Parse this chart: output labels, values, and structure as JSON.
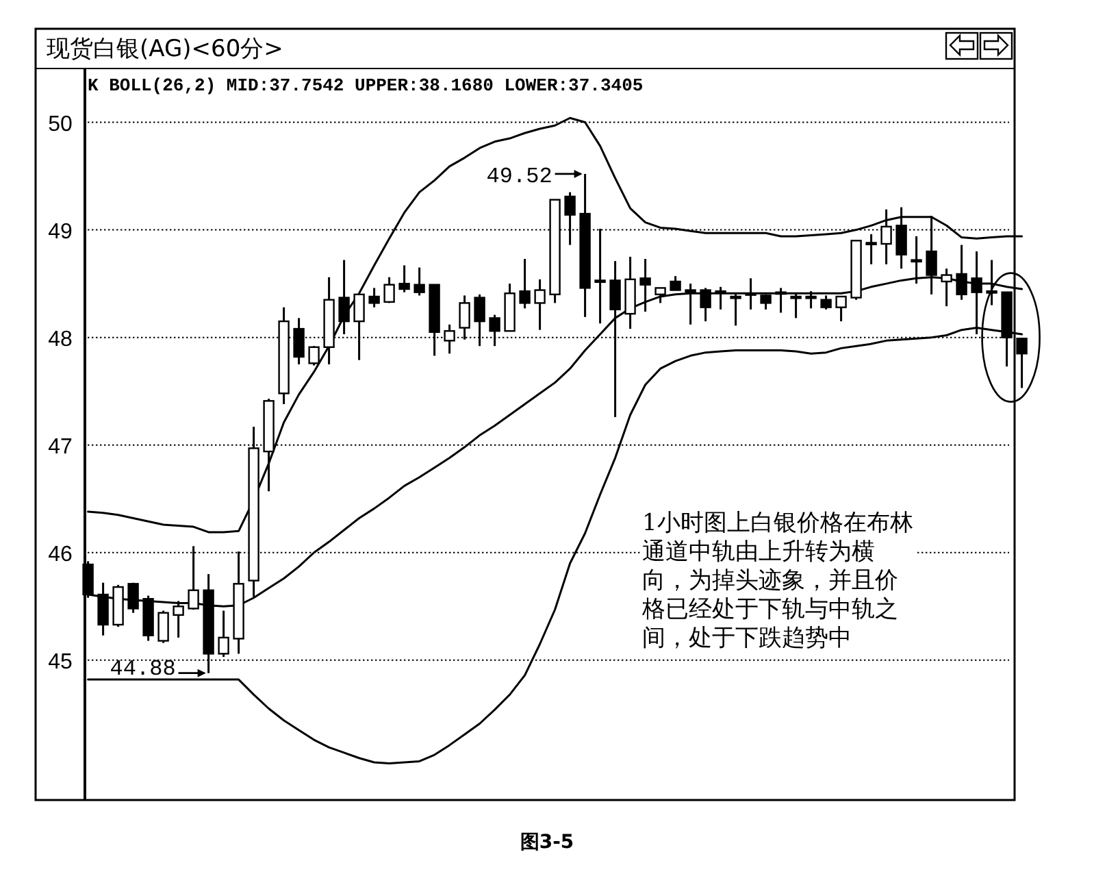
{
  "chart_data": {
    "type": "candlestick",
    "title": "现货白银(AG)<60分>",
    "subtitle": "K BOLL(26,2) MID:37.7542 UPPER:38.1680 LOWER:37.3405",
    "categories": [
      null,
      null,
      null,
      null,
      null,
      null,
      null,
      null,
      null,
      null,
      null,
      null,
      null,
      null,
      null,
      null,
      null,
      null,
      null,
      null,
      null,
      null,
      null,
      null,
      null,
      null,
      null,
      null,
      null,
      null,
      null,
      null,
      null,
      null,
      null,
      null,
      null,
      null,
      null,
      null,
      null,
      null,
      null,
      null,
      null,
      null,
      null,
      null,
      null,
      null,
      null,
      null,
      null,
      null,
      null,
      null,
      null,
      null,
      null,
      null,
      null,
      null,
      null
    ],
    "ohlc": [
      [
        45.89,
        45.92,
        45.58,
        45.61
      ],
      [
        45.61,
        45.72,
        45.23,
        45.33
      ],
      [
        45.33,
        45.7,
        45.31,
        45.68
      ],
      [
        45.71,
        45.72,
        45.44,
        45.48
      ],
      [
        45.57,
        45.6,
        45.18,
        45.23
      ],
      [
        45.18,
        45.46,
        45.16,
        45.44
      ],
      [
        45.42,
        45.55,
        45.21,
        45.5
      ],
      [
        45.48,
        46.06,
        45.47,
        45.65
      ],
      [
        45.65,
        45.8,
        44.88,
        45.06
      ],
      [
        45.06,
        45.46,
        45.03,
        45.21
      ],
      [
        45.2,
        46.01,
        45.06,
        45.71
      ],
      [
        45.74,
        47.17,
        45.59,
        46.97
      ],
      [
        46.94,
        47.43,
        46.57,
        47.41
      ],
      [
        47.48,
        48.28,
        47.38,
        48.15
      ],
      [
        48.08,
        48.18,
        47.75,
        47.82
      ],
      [
        47.76,
        47.92,
        47.74,
        47.91
      ],
      [
        47.91,
        48.56,
        47.75,
        48.35
      ],
      [
        48.37,
        48.72,
        48.03,
        48.15
      ],
      [
        48.15,
        48.4,
        47.79,
        48.4
      ],
      [
        48.38,
        48.46,
        48.28,
        48.32
      ],
      [
        48.33,
        48.56,
        48.32,
        48.49
      ],
      [
        48.5,
        48.67,
        48.42,
        48.45
      ],
      [
        48.49,
        48.65,
        48.39,
        48.42
      ],
      [
        48.49,
        48.49,
        47.83,
        48.05
      ],
      [
        47.97,
        48.12,
        47.85,
        48.06
      ],
      [
        48.09,
        48.39,
        47.98,
        48.32
      ],
      [
        48.37,
        48.4,
        47.92,
        48.15
      ],
      [
        48.18,
        48.21,
        47.92,
        48.06
      ],
      [
        48.06,
        48.5,
        48.06,
        48.41
      ],
      [
        48.43,
        48.73,
        48.27,
        48.32
      ],
      [
        48.32,
        48.54,
        48.07,
        48.44
      ],
      [
        48.4,
        49.28,
        48.32,
        49.28
      ],
      [
        49.31,
        49.35,
        48.86,
        49.14
      ],
      [
        49.15,
        49.52,
        48.19,
        48.46
      ],
      [
        48.53,
        49.01,
        48.13,
        48.52
      ],
      [
        48.53,
        48.71,
        47.26,
        48.26
      ],
      [
        48.22,
        48.75,
        48.08,
        48.54
      ],
      [
        48.55,
        48.73,
        48.24,
        48.49
      ],
      [
        48.4,
        48.46,
        48.32,
        48.46
      ],
      [
        48.52,
        48.57,
        48.44,
        48.44
      ],
      [
        48.44,
        48.5,
        48.12,
        48.43
      ],
      [
        48.44,
        48.46,
        48.15,
        48.28
      ],
      [
        48.43,
        48.47,
        48.26,
        48.42
      ],
      [
        48.38,
        48.41,
        48.11,
        48.37
      ],
      [
        48.41,
        48.55,
        48.26,
        48.4
      ],
      [
        48.39,
        48.4,
        48.26,
        48.32
      ],
      [
        48.42,
        48.46,
        48.23,
        48.41
      ],
      [
        48.38,
        48.41,
        48.18,
        48.37
      ],
      [
        48.38,
        48.43,
        48.27,
        48.37
      ],
      [
        48.35,
        48.39,
        48.26,
        48.28
      ],
      [
        48.28,
        48.38,
        48.15,
        48.38
      ],
      [
        48.37,
        48.9,
        48.35,
        48.9
      ],
      [
        48.88,
        48.96,
        48.68,
        48.87
      ],
      [
        48.87,
        49.19,
        48.68,
        49.03
      ],
      [
        49.04,
        49.21,
        48.64,
        48.77
      ],
      [
        48.72,
        48.94,
        48.5,
        48.71
      ],
      [
        48.8,
        49.13,
        48.4,
        48.58
      ],
      [
        48.52,
        48.64,
        48.29,
        48.58
      ],
      [
        48.59,
        48.86,
        48.35,
        48.4
      ],
      [
        48.55,
        48.8,
        48.03,
        48.42
      ],
      [
        48.43,
        48.72,
        48.3,
        48.42
      ],
      [
        48.42,
        48.42,
        47.73,
        48.0
      ],
      [
        47.99,
        47.99,
        47.53,
        47.85
      ]
    ],
    "series": [
      {
        "type": "line",
        "color": "#000000",
        "values": [
          46.38,
          46.37,
          46.35,
          46.32,
          46.29,
          46.26,
          46.25,
          46.24,
          46.19,
          46.19,
          46.2,
          46.49,
          46.83,
          47.21,
          47.47,
          47.68,
          47.92,
          48.2,
          48.41,
          48.67,
          48.92,
          49.16,
          49.35,
          49.46,
          49.59,
          49.67,
          49.76,
          49.82,
          49.85,
          49.9,
          49.94,
          49.97,
          50.04,
          50.0,
          49.78,
          49.48,
          49.2,
          49.07,
          49.02,
          49.01,
          48.99,
          48.97,
          48.97,
          48.97,
          48.97,
          48.97,
          48.94,
          48.94,
          48.95,
          48.96,
          48.97,
          49.0,
          49.04,
          49.09,
          49.12,
          49.12,
          49.12,
          49.04,
          48.93,
          48.92,
          48.93,
          48.94,
          48.94
        ]
      },
      {
        "type": "line",
        "color": "#000000",
        "values": [
          45.61,
          45.59,
          45.57,
          45.56,
          45.55,
          45.54,
          45.53,
          45.53,
          45.51,
          45.5,
          45.51,
          45.58,
          45.67,
          45.76,
          45.87,
          46.0,
          46.1,
          46.21,
          46.32,
          46.41,
          46.51,
          46.62,
          46.7,
          46.79,
          46.88,
          46.98,
          47.09,
          47.18,
          47.28,
          47.38,
          47.48,
          47.58,
          47.71,
          47.88,
          48.03,
          48.18,
          48.27,
          48.33,
          48.38,
          48.4,
          48.41,
          48.41,
          48.41,
          48.41,
          48.41,
          48.41,
          48.41,
          48.41,
          48.41,
          48.41,
          48.41,
          48.43,
          48.47,
          48.5,
          48.53,
          48.55,
          48.56,
          48.55,
          48.52,
          48.5,
          48.5,
          48.47,
          48.45
        ]
      },
      {
        "type": "line",
        "color": "#000000",
        "values": [
          44.82,
          44.82,
          44.82,
          44.82,
          44.82,
          44.82,
          44.82,
          44.82,
          44.82,
          44.82,
          44.82,
          44.68,
          44.55,
          44.44,
          44.35,
          44.26,
          44.19,
          44.14,
          44.09,
          44.05,
          44.04,
          44.05,
          44.06,
          44.12,
          44.21,
          44.31,
          44.41,
          44.54,
          44.68,
          44.86,
          45.15,
          45.47,
          45.9,
          46.18,
          46.54,
          46.88,
          47.28,
          47.56,
          47.71,
          47.78,
          47.83,
          47.86,
          47.87,
          47.88,
          47.88,
          47.88,
          47.88,
          47.87,
          47.85,
          47.86,
          47.9,
          47.92,
          47.94,
          47.97,
          47.98,
          47.99,
          48.0,
          48.02,
          48.07,
          48.09,
          48.07,
          48.05,
          48.03
        ]
      }
    ],
    "ylim": [
      43.7,
      50.5
    ],
    "yticks": [
      45,
      46,
      47,
      48,
      49,
      50
    ],
    "grid": "y",
    "annotations": [
      "49.52",
      "44.88",
      "1小时图上白银价格在布林通道中轨由上升转为横向，为掉头迹象，并且价格已经处于下轨与中轨之间，处于下跌趋势中",
      "图3-5"
    ]
  }
}
